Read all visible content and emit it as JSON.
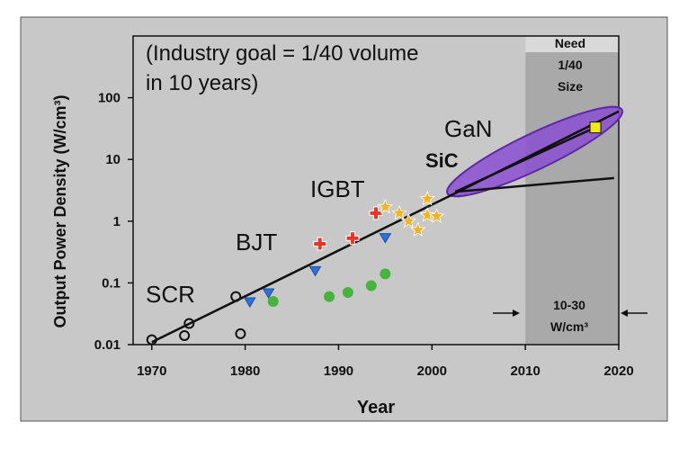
{
  "chart_data": {
    "type": "scatter",
    "title": "",
    "xlabel": "Year",
    "ylabel": "Output Power Density (W/cm³)",
    "xlim": [
      1968,
      2020
    ],
    "ylim_log10": [
      -2,
      3
    ],
    "log_y": true,
    "x_ticks": [
      "1970",
      "1980",
      "1990",
      "2000",
      "2010",
      "2020"
    ],
    "x_tick_values": [
      1970,
      1980,
      1990,
      2000,
      2010,
      2020
    ],
    "y_ticks": [
      "0.01",
      "0.1",
      "1",
      "10",
      "100"
    ],
    "y_tick_values": [
      0.01,
      0.1,
      1,
      10,
      100
    ],
    "grid": false,
    "background": "#c8c8c8",
    "shaded_region": {
      "x_from": 2010,
      "x_to": 2020,
      "color": "#a9a9a9"
    },
    "annotations": {
      "goal_line1": "(Industry goal = 1/40 volume",
      "goal_line2": "in 10 years)",
      "need_line1": "Need",
      "need_line2": "1/40",
      "need_line3": "Size",
      "target_line1": "10-30",
      "target_line2": "W/cm³",
      "label_scr": "SCR",
      "label_bjt": "BJT",
      "label_igbt": "IGBT",
      "label_sic": "SiC",
      "label_gan": "GaN"
    },
    "series": [
      {
        "name": "SCR",
        "marker": "circle",
        "color": "#111111",
        "points": [
          [
            1970,
            0.012
          ],
          [
            1973.5,
            0.014
          ],
          [
            1974,
            0.022
          ],
          [
            1979,
            0.06
          ],
          [
            1979.5,
            0.015
          ]
        ]
      },
      {
        "name": "BJT",
        "marker": "triangle",
        "color": "#2f6fd6",
        "points": [
          [
            1980.5,
            0.05
          ],
          [
            1982.5,
            0.07
          ],
          [
            1987.5,
            0.16
          ],
          [
            1995,
            0.55
          ]
        ]
      },
      {
        "name": "",
        "marker": "circle",
        "color": "#46b33c",
        "points": [
          [
            1983,
            0.05
          ],
          [
            1989,
            0.06
          ],
          [
            1991,
            0.07
          ],
          [
            1993.5,
            0.09
          ],
          [
            1995,
            0.14
          ]
        ]
      },
      {
        "name": "IGBT",
        "marker": "cross",
        "color": "#e8352a",
        "points": [
          [
            1988,
            0.43
          ],
          [
            1991.5,
            0.53
          ],
          [
            1994,
            1.35
          ]
        ]
      },
      {
        "name": "",
        "marker": "star",
        "color": "#f2b51f",
        "points": [
          [
            1995,
            1.7
          ],
          [
            1996.5,
            1.35
          ],
          [
            1997.5,
            1.0
          ],
          [
            1998.5,
            0.72
          ],
          [
            1999.5,
            2.3
          ],
          [
            1999.5,
            1.25
          ],
          [
            2000.5,
            1.2
          ]
        ]
      },
      {
        "name": "GaN",
        "marker": "square",
        "color": "#f0e81a",
        "points": [
          [
            2017.5,
            33
          ]
        ]
      }
    ],
    "trend_lines": [
      {
        "points": [
          [
            1970,
            0.011
          ],
          [
            2002,
            2.6
          ],
          [
            2020,
            60
          ]
        ]
      },
      {
        "points": [
          [
            2002.5,
            3.0
          ],
          [
            2019.5,
            5.0
          ]
        ]
      },
      {
        "points": [
          [
            2002.5,
            3.0
          ],
          [
            2017.5,
            33
          ]
        ]
      }
    ],
    "ellipse": {
      "x_from": 2002,
      "x_to": 2020,
      "y_from": 3,
      "y_to": 60,
      "color": "#8a4fd1"
    }
  }
}
